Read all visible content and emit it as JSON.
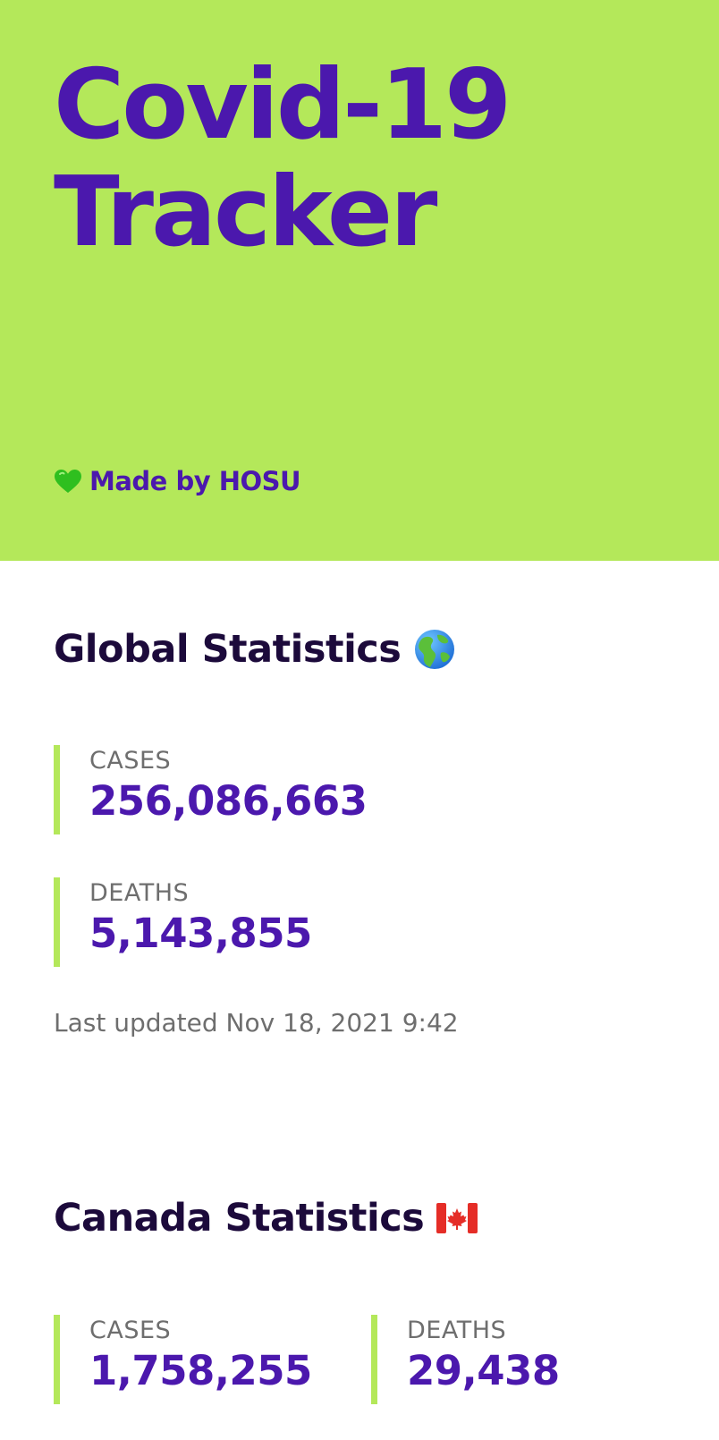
{
  "header": {
    "title_line1": "Covid-19",
    "title_line2": "Tracker",
    "credit_icon": "green-heart-icon",
    "credit_text": "Made by HOSU"
  },
  "global": {
    "title": "Global Statistics",
    "title_icon": "globe-americas-icon",
    "cases_label": "CASES",
    "cases_value": "256,086,663",
    "deaths_label": "DEATHS",
    "deaths_value": "5,143,855",
    "last_updated": "Last updated Nov 18, 2021 9:42"
  },
  "canada": {
    "title": "Canada Statistics",
    "title_icon": "canada-flag-icon",
    "cases_label": "CASES",
    "cases_value": "1,758,255",
    "deaths_label": "DEATHS",
    "deaths_value": "29,438"
  },
  "colors": {
    "accent_green": "#b4e85a",
    "primary_purple": "#4b18ad",
    "heading_dark": "#1c0a3b",
    "muted_gray": "#6e6e6e"
  }
}
